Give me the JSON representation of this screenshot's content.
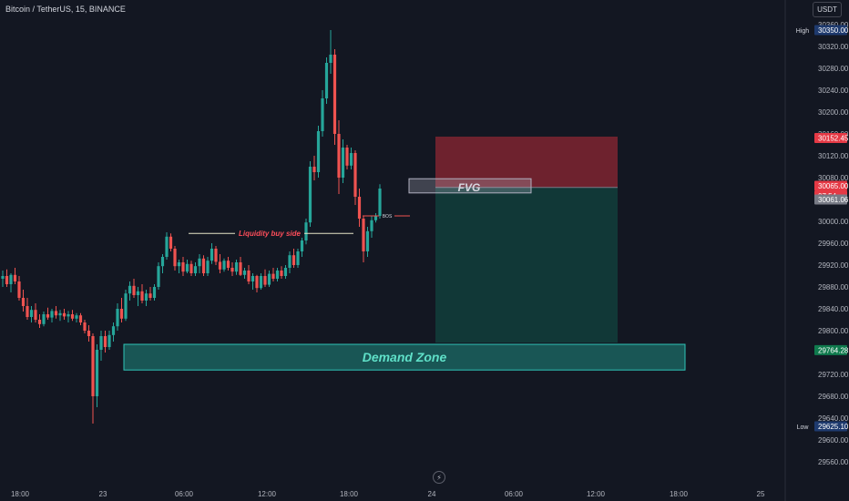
{
  "header": {
    "symbol_title": "Bitcoin / TetherUS, 15, BINANCE",
    "currency_button": "USDT"
  },
  "colors": {
    "background": "#131722",
    "up": "#26a69a",
    "down": "#ef5350",
    "liquidity": "#ff4d5a",
    "demand_fill": "#1f8a80",
    "stop_fill": "#7f2430",
    "target_fill": "#123c3a"
  },
  "icons": {
    "bottom": "lightning-icon"
  },
  "chart_data": {
    "type": "candlestick",
    "x_tick_labels": [
      "18:00",
      "23",
      "06:00",
      "12:00",
      "18:00",
      "24",
      "06:00",
      "12:00",
      "18:00",
      "25"
    ],
    "y_tick_labels": [
      30360,
      30320,
      30280,
      30240,
      30200,
      30160,
      30120,
      30080,
      30000,
      29960,
      29920,
      29880,
      29840,
      29800,
      29720,
      29680,
      29640,
      29600,
      29560
    ],
    "ylim": [
      29540,
      30380
    ],
    "price_labels": [
      {
        "label": "High",
        "value": "30350.00",
        "color": "#1e3a6e",
        "price": 30350
      },
      {
        "label": "",
        "value": "30152.45",
        "color": "#e53945",
        "price": 30152.45
      },
      {
        "label": "",
        "value": "30065.00",
        "color": "#e53945",
        "price": 30065
      },
      {
        "label": "",
        "value": "07:54",
        "color": "#e53945",
        "price": 30047
      },
      {
        "label": "",
        "value": "30061.06",
        "color": "#787b86",
        "price": 30040
      },
      {
        "label": "",
        "value": "29764.28",
        "color": "#0f7a4d",
        "price": 29764.28
      },
      {
        "label": "Low",
        "value": "29625.10",
        "color": "#1e3a6e",
        "price": 29625.1
      }
    ],
    "annotations": {
      "liquidity": {
        "text": "Liquidity buy side",
        "price": 29978
      },
      "bos": {
        "text": "BOS",
        "price": 30010
      },
      "fvg": {
        "text": "FVG",
        "top": 30078,
        "bottom": 30052
      },
      "demand_zone": {
        "text": "Demand Zone",
        "top": 29775,
        "bottom": 29728
      },
      "position": {
        "stop_top": 30155,
        "entry": 30062,
        "target": 29778
      }
    },
    "candles": [
      [
        29895,
        29910,
        29880,
        29900
      ],
      [
        29900,
        29912,
        29880,
        29885
      ],
      [
        29885,
        29905,
        29870,
        29902
      ],
      [
        29902,
        29915,
        29885,
        29890
      ],
      [
        29890,
        29900,
        29855,
        29860
      ],
      [
        29860,
        29875,
        29835,
        29845
      ],
      [
        29845,
        29860,
        29820,
        29825
      ],
      [
        29825,
        29845,
        29815,
        29838
      ],
      [
        29838,
        29850,
        29815,
        29820
      ],
      [
        29820,
        29830,
        29805,
        29812
      ],
      [
        29812,
        29835,
        29808,
        29830
      ],
      [
        29830,
        29842,
        29820,
        29824
      ],
      [
        29824,
        29840,
        29815,
        29836
      ],
      [
        29836,
        29845,
        29822,
        29828
      ],
      [
        29828,
        29838,
        29818,
        29832
      ],
      [
        29832,
        29840,
        29820,
        29826
      ],
      [
        29826,
        29836,
        29815,
        29830
      ],
      [
        29830,
        29838,
        29818,
        29822
      ],
      [
        29822,
        29832,
        29815,
        29828
      ],
      [
        29828,
        29832,
        29810,
        29815
      ],
      [
        29815,
        29820,
        29795,
        29800
      ],
      [
        29800,
        29810,
        29780,
        29790
      ],
      [
        29790,
        29795,
        29630,
        29680
      ],
      [
        29680,
        29775,
        29660,
        29765
      ],
      [
        29765,
        29800,
        29745,
        29790
      ],
      [
        29790,
        29800,
        29760,
        29770
      ],
      [
        29770,
        29800,
        29765,
        29792
      ],
      [
        29792,
        29815,
        29780,
        29808
      ],
      [
        29808,
        29850,
        29800,
        29840
      ],
      [
        29840,
        29860,
        29815,
        29822
      ],
      [
        29822,
        29875,
        29818,
        29868
      ],
      [
        29868,
        29890,
        29855,
        29882
      ],
      [
        29882,
        29895,
        29860,
        29865
      ],
      [
        29865,
        29880,
        29845,
        29872
      ],
      [
        29872,
        29885,
        29850,
        29855
      ],
      [
        29855,
        29875,
        29845,
        29868
      ],
      [
        29868,
        29880,
        29855,
        29860
      ],
      [
        29860,
        29885,
        29855,
        29880
      ],
      [
        29880,
        29925,
        29875,
        29918
      ],
      [
        29918,
        29940,
        29905,
        29935
      ],
      [
        29935,
        29980,
        29930,
        29972
      ],
      [
        29972,
        29978,
        29945,
        29950
      ],
      [
        29950,
        29955,
        29910,
        29918
      ],
      [
        29918,
        29930,
        29905,
        29925
      ],
      [
        29925,
        29935,
        29900,
        29908
      ],
      [
        29908,
        29930,
        29905,
        29922
      ],
      [
        29922,
        29928,
        29900,
        29905
      ],
      [
        29905,
        29925,
        29900,
        29918
      ],
      [
        29918,
        29940,
        29905,
        29932
      ],
      [
        29932,
        29938,
        29900,
        29905
      ],
      [
        29905,
        29935,
        29900,
        29928
      ],
      [
        29928,
        29960,
        29922,
        29950
      ],
      [
        29950,
        29955,
        29920,
        29926
      ],
      [
        29926,
        29940,
        29905,
        29912
      ],
      [
        29912,
        29932,
        29908,
        29928
      ],
      [
        29928,
        29935,
        29910,
        29915
      ],
      [
        29915,
        29925,
        29900,
        29908
      ],
      [
        29908,
        29930,
        29902,
        29925
      ],
      [
        29925,
        29935,
        29900,
        29902
      ],
      [
        29902,
        29915,
        29895,
        29910
      ],
      [
        29910,
        29920,
        29885,
        29890
      ],
      [
        29890,
        29905,
        29875,
        29900
      ],
      [
        29900,
        29902,
        29870,
        29878
      ],
      [
        29878,
        29905,
        29875,
        29900
      ],
      [
        29900,
        29912,
        29880,
        29884
      ],
      [
        29884,
        29910,
        29880,
        29904
      ],
      [
        29904,
        29915,
        29890,
        29895
      ],
      [
        29895,
        29915,
        29890,
        29910
      ],
      [
        29910,
        29918,
        29895,
        29900
      ],
      [
        29900,
        29920,
        29895,
        29915
      ],
      [
        29915,
        29945,
        29905,
        29938
      ],
      [
        29938,
        29950,
        29915,
        29920
      ],
      [
        29920,
        29950,
        29915,
        29945
      ],
      [
        29945,
        29970,
        29935,
        29965
      ],
      [
        29965,
        30005,
        29958,
        29998
      ],
      [
        29998,
        30110,
        29990,
        30100
      ],
      [
        30100,
        30120,
        30075,
        30090
      ],
      [
        30090,
        30175,
        30080,
        30165
      ],
      [
        30165,
        30240,
        30155,
        30225
      ],
      [
        30225,
        30300,
        30215,
        30290
      ],
      [
        30290,
        30350,
        30270,
        30305
      ],
      [
        30305,
        30315,
        30140,
        30160
      ],
      [
        30160,
        30185,
        30050,
        30080
      ],
      [
        30080,
        30150,
        30070,
        30135
      ],
      [
        30135,
        30140,
        30095,
        30102
      ],
      [
        30102,
        30135,
        30095,
        30125
      ],
      [
        30125,
        30130,
        30030,
        30045
      ],
      [
        30045,
        30060,
        29990,
        30005
      ],
      [
        30005,
        30010,
        29925,
        29945
      ],
      [
        29945,
        29990,
        29935,
        29982
      ],
      [
        29982,
        30010,
        29970,
        30002
      ],
      [
        30002,
        30015,
        29998,
        30010
      ],
      [
        30010,
        30068,
        30005,
        30060
      ]
    ]
  }
}
